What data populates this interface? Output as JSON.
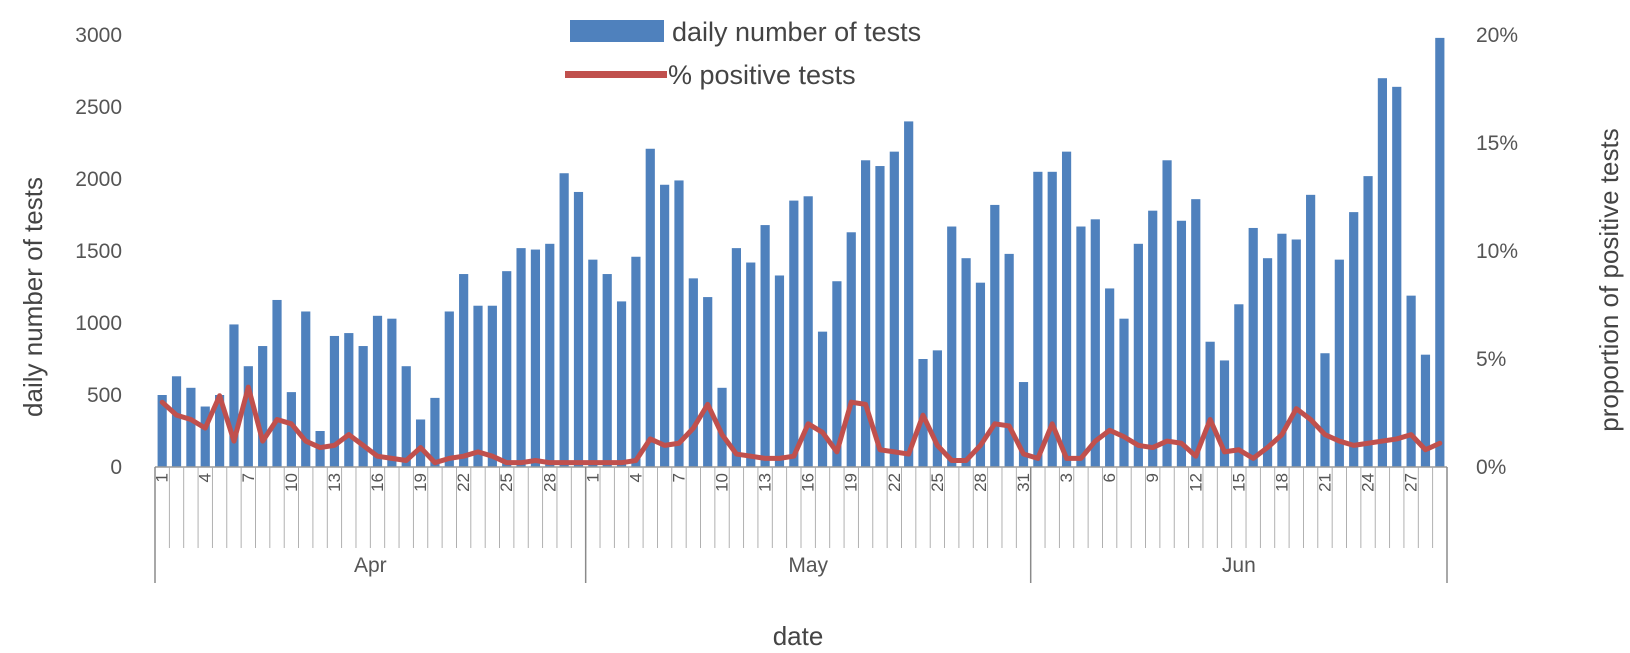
{
  "chart_data": {
    "type": "bar+line",
    "title": "",
    "xlabel": "date",
    "ylabel": "daily number of tests",
    "y2label": "proportion of positive tests",
    "ylim": [
      0,
      3000
    ],
    "y2lim": [
      0,
      0.2
    ],
    "yticks": [
      "0",
      "500",
      "1000",
      "1500",
      "2000",
      "2500",
      "3000"
    ],
    "y2ticks": [
      "0%",
      "5%",
      "10%",
      "15%",
      "20%"
    ],
    "legend_position": "top-center",
    "grid": false,
    "months": [
      {
        "label": "Apr",
        "start": 0,
        "end": 30
      },
      {
        "label": "May",
        "start": 30,
        "end": 61
      },
      {
        "label": "Jun",
        "start": 61,
        "end": 90
      }
    ],
    "tick_labels": [
      {
        "index": 0,
        "text": "1"
      },
      {
        "index": 3,
        "text": "4"
      },
      {
        "index": 6,
        "text": "7"
      },
      {
        "index": 9,
        "text": "10"
      },
      {
        "index": 12,
        "text": "13"
      },
      {
        "index": 15,
        "text": "16"
      },
      {
        "index": 18,
        "text": "19"
      },
      {
        "index": 21,
        "text": "22"
      },
      {
        "index": 24,
        "text": "25"
      },
      {
        "index": 27,
        "text": "28"
      },
      {
        "index": 30,
        "text": "1"
      },
      {
        "index": 33,
        "text": "4"
      },
      {
        "index": 36,
        "text": "7"
      },
      {
        "index": 39,
        "text": "10"
      },
      {
        "index": 42,
        "text": "13"
      },
      {
        "index": 45,
        "text": "16"
      },
      {
        "index": 48,
        "text": "19"
      },
      {
        "index": 51,
        "text": "22"
      },
      {
        "index": 54,
        "text": "25"
      },
      {
        "index": 57,
        "text": "28"
      },
      {
        "index": 60,
        "text": "31"
      },
      {
        "index": 63,
        "text": "3"
      },
      {
        "index": 66,
        "text": "6"
      },
      {
        "index": 69,
        "text": "9"
      },
      {
        "index": 72,
        "text": "12"
      },
      {
        "index": 75,
        "text": "15"
      },
      {
        "index": 78,
        "text": "18"
      },
      {
        "index": 81,
        "text": "21"
      },
      {
        "index": 84,
        "text": "24"
      },
      {
        "index": 87,
        "text": "27"
      }
    ],
    "series": [
      {
        "name": "daily number of tests",
        "type": "bar",
        "color": "#4f81bd",
        "values": [
          500,
          630,
          550,
          420,
          500,
          990,
          700,
          840,
          1160,
          520,
          1080,
          250,
          910,
          930,
          840,
          1050,
          1030,
          700,
          330,
          480,
          1080,
          1340,
          1120,
          1120,
          1360,
          1520,
          1510,
          1550,
          2040,
          1910,
          1440,
          1340,
          1150,
          1460,
          2210,
          1960,
          1990,
          1310,
          1180,
          550,
          1520,
          1420,
          1680,
          1330,
          1850,
          1880,
          940,
          1290,
          1630,
          2130,
          2090,
          2190,
          2400,
          750,
          810,
          1670,
          1450,
          1280,
          1820,
          1480,
          590,
          2050,
          2050,
          2190,
          1670,
          1720,
          1240,
          1030,
          1550,
          1780,
          2130,
          1710,
          1860,
          870,
          740,
          1130,
          1660,
          1450,
          1620,
          1580,
          1890,
          790,
          1440,
          1770,
          2020,
          2700,
          2640,
          1190,
          780,
          2980
        ]
      },
      {
        "name": "% positive tests",
        "type": "line",
        "axis": "right",
        "color": "#c0504d",
        "values": [
          0.03,
          0.024,
          0.022,
          0.018,
          0.033,
          0.012,
          0.037,
          0.012,
          0.022,
          0.02,
          0.012,
          0.009,
          0.01,
          0.015,
          0.01,
          0.005,
          0.004,
          0.003,
          0.009,
          0.002,
          0.004,
          0.005,
          0.007,
          0.005,
          0.002,
          0.002,
          0.003,
          0.002,
          0.002,
          0.002,
          0.002,
          0.002,
          0.002,
          0.003,
          0.013,
          0.01,
          0.011,
          0.018,
          0.029,
          0.015,
          0.006,
          0.005,
          0.004,
          0.004,
          0.005,
          0.02,
          0.016,
          0.007,
          0.03,
          0.029,
          0.008,
          0.007,
          0.006,
          0.024,
          0.01,
          0.003,
          0.003,
          0.01,
          0.02,
          0.019,
          0.006,
          0.004,
          0.02,
          0.004,
          0.004,
          0.012,
          0.017,
          0.014,
          0.01,
          0.009,
          0.012,
          0.011,
          0.005,
          0.022,
          0.007,
          0.008,
          0.004,
          0.009,
          0.015,
          0.027,
          0.022,
          0.015,
          0.012,
          0.01,
          0.011,
          0.012,
          0.013,
          0.015,
          0.008,
          0.011
        ]
      }
    ]
  }
}
